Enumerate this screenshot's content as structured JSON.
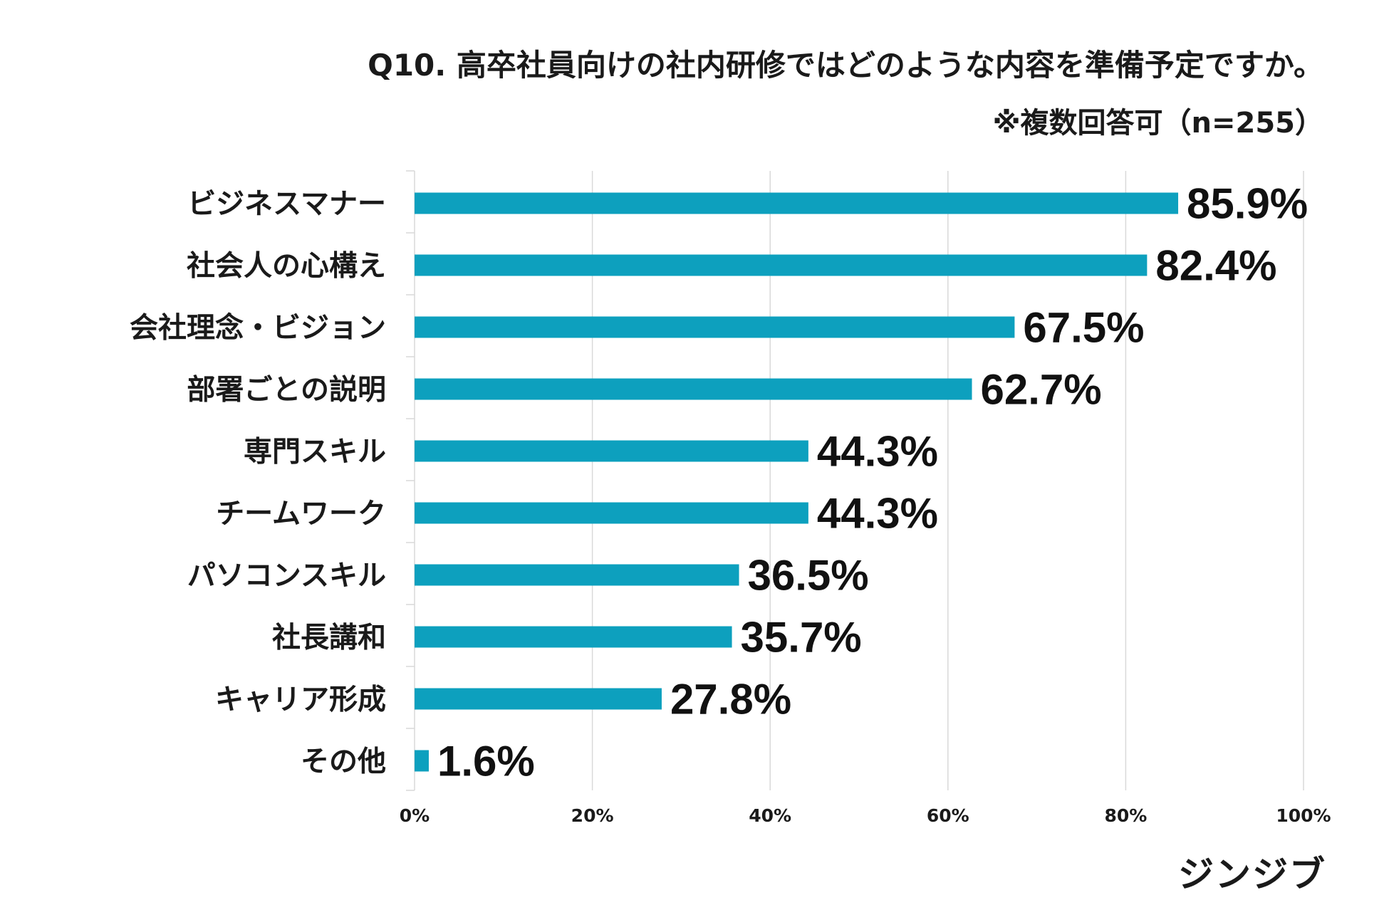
{
  "chart_data": {
    "type": "bar",
    "orientation": "horizontal",
    "title": "Q10. 高卒社員向けの社内研修ではどのような内容を準備予定ですか。",
    "subtitle": "※複数回答可（n=255）",
    "categories": [
      "ビジネスマナー",
      "社会人の心構え",
      "会社理念・ビジョン",
      "部署ごとの説明",
      "専門スキル",
      "チームワーク",
      "パソコンスキル",
      "社長講和",
      "キャリア形成",
      "その他"
    ],
    "values": [
      85.9,
      82.4,
      67.5,
      62.7,
      44.3,
      44.3,
      36.5,
      35.7,
      27.8,
      1.6
    ],
    "value_labels": [
      "85.9%",
      "82.4%",
      "67.5%",
      "62.7%",
      "44.3%",
      "44.3%",
      "36.5%",
      "35.7%",
      "27.8%",
      "1.6%"
    ],
    "xlim": [
      0,
      100
    ],
    "xticks": [
      0,
      20,
      40,
      60,
      80,
      100
    ],
    "xtick_labels": [
      "0%",
      "20%",
      "40%",
      "60%",
      "80%",
      "100%"
    ],
    "grid": true,
    "bar_color": "#0da0be",
    "grid_color": "#d9d9d9"
  },
  "brand": {
    "logo_text": "ジンジブ"
  }
}
